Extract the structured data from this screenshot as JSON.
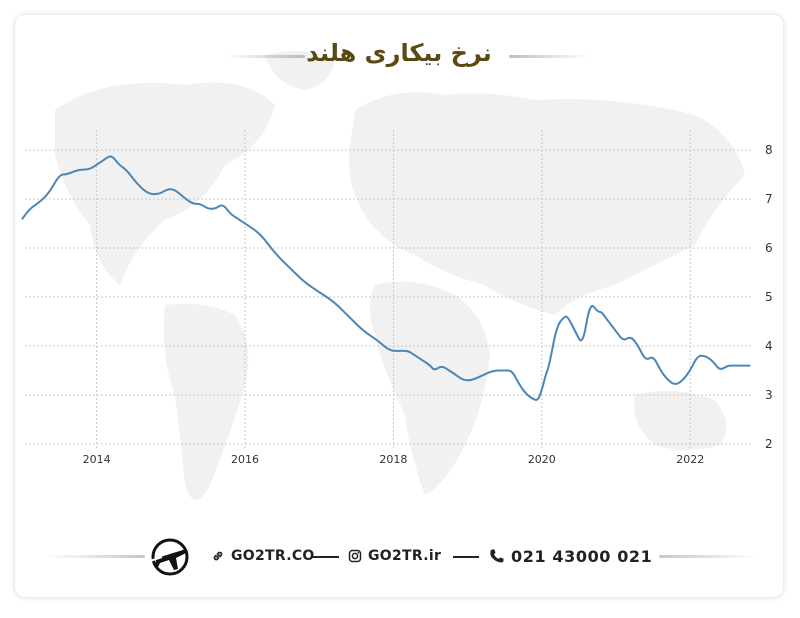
{
  "title": "نرخ بیکاری هلند",
  "chart_data": {
    "type": "line",
    "xlabel": "",
    "ylabel": "",
    "x_ticks": [
      "2014",
      "2016",
      "2018",
      "2020",
      "2022"
    ],
    "y_ticks": [
      "2",
      "3",
      "4",
      "5",
      "6",
      "7",
      "8"
    ],
    "ylim": [
      2,
      8
    ],
    "xlim": [
      2012.9,
      2022.9
    ],
    "grid": "dotted",
    "y_axis_position": "right",
    "line_color": "#4a86b8",
    "series": [
      {
        "x": [
          2013.0,
          2013.1,
          2013.2,
          2013.35,
          2013.5,
          2013.6,
          2013.75,
          2013.9,
          2014.0,
          2014.1,
          2014.2,
          2014.3,
          2014.4,
          2014.55,
          2014.7,
          2014.85,
          2014.95,
          2015.05,
          2015.2,
          2015.3,
          2015.4,
          2015.5,
          2015.6,
          2015.7,
          2015.8,
          2015.9,
          2016.0,
          2016.2,
          2016.4,
          2016.6,
          2016.8,
          2017.0,
          2017.2,
          2017.4,
          2017.6,
          2017.8,
          2017.95,
          2018.1,
          2018.2,
          2018.3,
          2018.4,
          2018.5,
          2018.55,
          2018.65,
          2018.75,
          2018.85,
          2018.95,
          2019.05,
          2019.2,
          2019.35,
          2019.5,
          2019.6,
          2019.7,
          2019.8,
          2019.9,
          2019.95,
          2020.0,
          2020.05,
          2020.1,
          2020.2,
          2020.3,
          2020.35,
          2020.45,
          2020.55,
          2020.65,
          2020.75,
          2020.8,
          2020.85,
          2020.9,
          2021.0,
          2021.1,
          2021.2,
          2021.3,
          2021.4,
          2021.5,
          2021.6,
          2021.7,
          2021.8,
          2021.9,
          2022.0,
          2022.1,
          2022.2,
          2022.3,
          2022.4,
          2022.5,
          2022.6,
          2022.7,
          2022.8
        ],
        "values": [
          6.6,
          6.8,
          6.9,
          7.1,
          7.5,
          7.5,
          7.6,
          7.6,
          7.7,
          7.8,
          7.9,
          7.7,
          7.6,
          7.3,
          7.1,
          7.1,
          7.2,
          7.2,
          7.0,
          6.9,
          6.9,
          6.8,
          6.8,
          6.9,
          6.7,
          6.6,
          6.5,
          6.3,
          5.9,
          5.6,
          5.3,
          5.1,
          4.9,
          4.6,
          4.3,
          4.1,
          3.9,
          3.9,
          3.9,
          3.8,
          3.7,
          3.6,
          3.5,
          3.6,
          3.5,
          3.4,
          3.3,
          3.3,
          3.4,
          3.5,
          3.5,
          3.5,
          3.2,
          3.0,
          2.9,
          2.9,
          3.1,
          3.4,
          3.6,
          4.4,
          4.6,
          4.6,
          4.3,
          4.0,
          4.9,
          4.7,
          4.7,
          4.6,
          4.5,
          4.3,
          4.1,
          4.2,
          4.0,
          3.7,
          3.8,
          3.5,
          3.3,
          3.2,
          3.3,
          3.5,
          3.8,
          3.8,
          3.7,
          3.5,
          3.6,
          3.6,
          3.6,
          3.6
        ]
      }
    ]
  },
  "footer": {
    "website": "GO2TR.CO",
    "instagram": "GO2TR.ir",
    "phone": "021 43000 021"
  },
  "icons": {
    "logo": "plane-logo-icon",
    "website": "link-icon",
    "instagram": "instagram-icon",
    "phone": "phone-icon"
  },
  "colors": {
    "title": "#5a4a12",
    "line": "#4a86b8",
    "footer_text": "#222222"
  }
}
